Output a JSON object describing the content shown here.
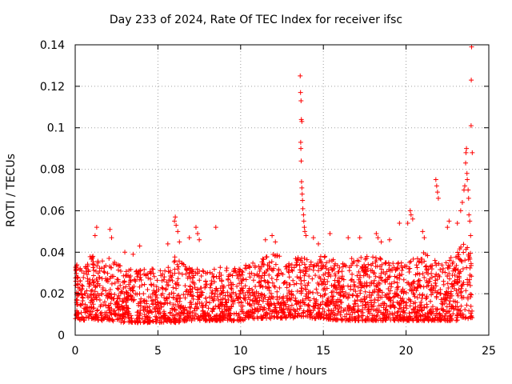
{
  "chart_data": {
    "type": "scatter",
    "title": "Day 233 of 2024, Rate Of TEC Index for receiver ifsc",
    "xlabel": "GPS time / hours",
    "ylabel": "ROTI / TECUs",
    "xlim": [
      0,
      25
    ],
    "ylim": [
      0,
      0.14
    ],
    "xticks": [
      0,
      5,
      10,
      15,
      20,
      25
    ],
    "yticks": [
      0,
      0.02,
      0.04,
      0.06,
      0.08,
      0.1,
      0.12,
      0.14
    ],
    "grid": true,
    "marker": "+",
    "color": "#ff0000",
    "series": [
      {
        "name": "ROTI",
        "baseline": {
          "x": [
            0,
            0.5,
            1,
            1.5,
            2,
            3,
            4,
            5,
            6,
            7,
            8,
            9,
            10,
            11,
            12,
            13,
            13.7,
            14.5,
            15,
            16,
            17,
            18,
            19,
            20,
            21,
            22,
            23,
            23.6,
            24
          ],
          "low": [
            0.008,
            0.007,
            0.008,
            0.007,
            0.007,
            0.006,
            0.006,
            0.006,
            0.006,
            0.007,
            0.007,
            0.007,
            0.007,
            0.008,
            0.008,
            0.008,
            0.009,
            0.008,
            0.008,
            0.007,
            0.007,
            0.007,
            0.007,
            0.007,
            0.007,
            0.007,
            0.007,
            0.008,
            0.008
          ],
          "high": [
            0.035,
            0.032,
            0.04,
            0.035,
            0.038,
            0.033,
            0.032,
            0.032,
            0.038,
            0.033,
            0.032,
            0.033,
            0.033,
            0.036,
            0.04,
            0.035,
            0.04,
            0.035,
            0.04,
            0.037,
            0.038,
            0.04,
            0.035,
            0.035,
            0.04,
            0.035,
            0.04,
            0.05,
            0.038
          ]
        },
        "spikes": [
          [
            0.1,
            0.028
          ],
          [
            1.2,
            0.048
          ],
          [
            1.3,
            0.052
          ],
          [
            2.1,
            0.051
          ],
          [
            2.2,
            0.047
          ],
          [
            3.0,
            0.04
          ],
          [
            3.5,
            0.039
          ],
          [
            3.9,
            0.043
          ],
          [
            5.6,
            0.044
          ],
          [
            6.0,
            0.055
          ],
          [
            6.05,
            0.057
          ],
          [
            6.1,
            0.053
          ],
          [
            6.2,
            0.05
          ],
          [
            6.3,
            0.045
          ],
          [
            6.9,
            0.047
          ],
          [
            7.3,
            0.052
          ],
          [
            7.4,
            0.049
          ],
          [
            7.5,
            0.046
          ],
          [
            8.5,
            0.052
          ],
          [
            11.5,
            0.046
          ],
          [
            11.9,
            0.048
          ],
          [
            12.1,
            0.045
          ],
          [
            13.6,
            0.125
          ],
          [
            13.62,
            0.117
          ],
          [
            13.65,
            0.113
          ],
          [
            13.67,
            0.104
          ],
          [
            13.7,
            0.103
          ],
          [
            13.63,
            0.093
          ],
          [
            13.64,
            0.09
          ],
          [
            13.66,
            0.084
          ],
          [
            13.68,
            0.074
          ],
          [
            13.7,
            0.071
          ],
          [
            13.72,
            0.068
          ],
          [
            13.74,
            0.065
          ],
          [
            13.76,
            0.061
          ],
          [
            13.8,
            0.058
          ],
          [
            13.82,
            0.055
          ],
          [
            13.85,
            0.052
          ],
          [
            13.88,
            0.05
          ],
          [
            13.95,
            0.048
          ],
          [
            14.4,
            0.047
          ],
          [
            14.7,
            0.044
          ],
          [
            15.4,
            0.049
          ],
          [
            16.5,
            0.047
          ],
          [
            17.2,
            0.047
          ],
          [
            18.2,
            0.049
          ],
          [
            18.3,
            0.047
          ],
          [
            18.5,
            0.045
          ],
          [
            19.0,
            0.046
          ],
          [
            19.6,
            0.054
          ],
          [
            20.1,
            0.054
          ],
          [
            20.25,
            0.06
          ],
          [
            20.3,
            0.058
          ],
          [
            20.4,
            0.056
          ],
          [
            21.0,
            0.05
          ],
          [
            21.1,
            0.047
          ],
          [
            21.8,
            0.075
          ],
          [
            21.85,
            0.072
          ],
          [
            21.9,
            0.069
          ],
          [
            21.95,
            0.066
          ],
          [
            22.5,
            0.052
          ],
          [
            22.6,
            0.055
          ],
          [
            23.1,
            0.054
          ],
          [
            23.3,
            0.06
          ],
          [
            23.4,
            0.064
          ],
          [
            23.5,
            0.07
          ],
          [
            23.55,
            0.072
          ],
          [
            23.6,
            0.083
          ],
          [
            23.62,
            0.088
          ],
          [
            23.65,
            0.09
          ],
          [
            23.68,
            0.078
          ],
          [
            23.7,
            0.075
          ],
          [
            23.75,
            0.07
          ],
          [
            23.78,
            0.066
          ],
          [
            23.8,
            0.058
          ],
          [
            23.85,
            0.055
          ],
          [
            23.9,
            0.048
          ],
          [
            23.93,
            0.101
          ],
          [
            23.94,
            0.123
          ],
          [
            23.96,
            0.139
          ],
          [
            24.0,
            0.088
          ]
        ]
      }
    ]
  }
}
